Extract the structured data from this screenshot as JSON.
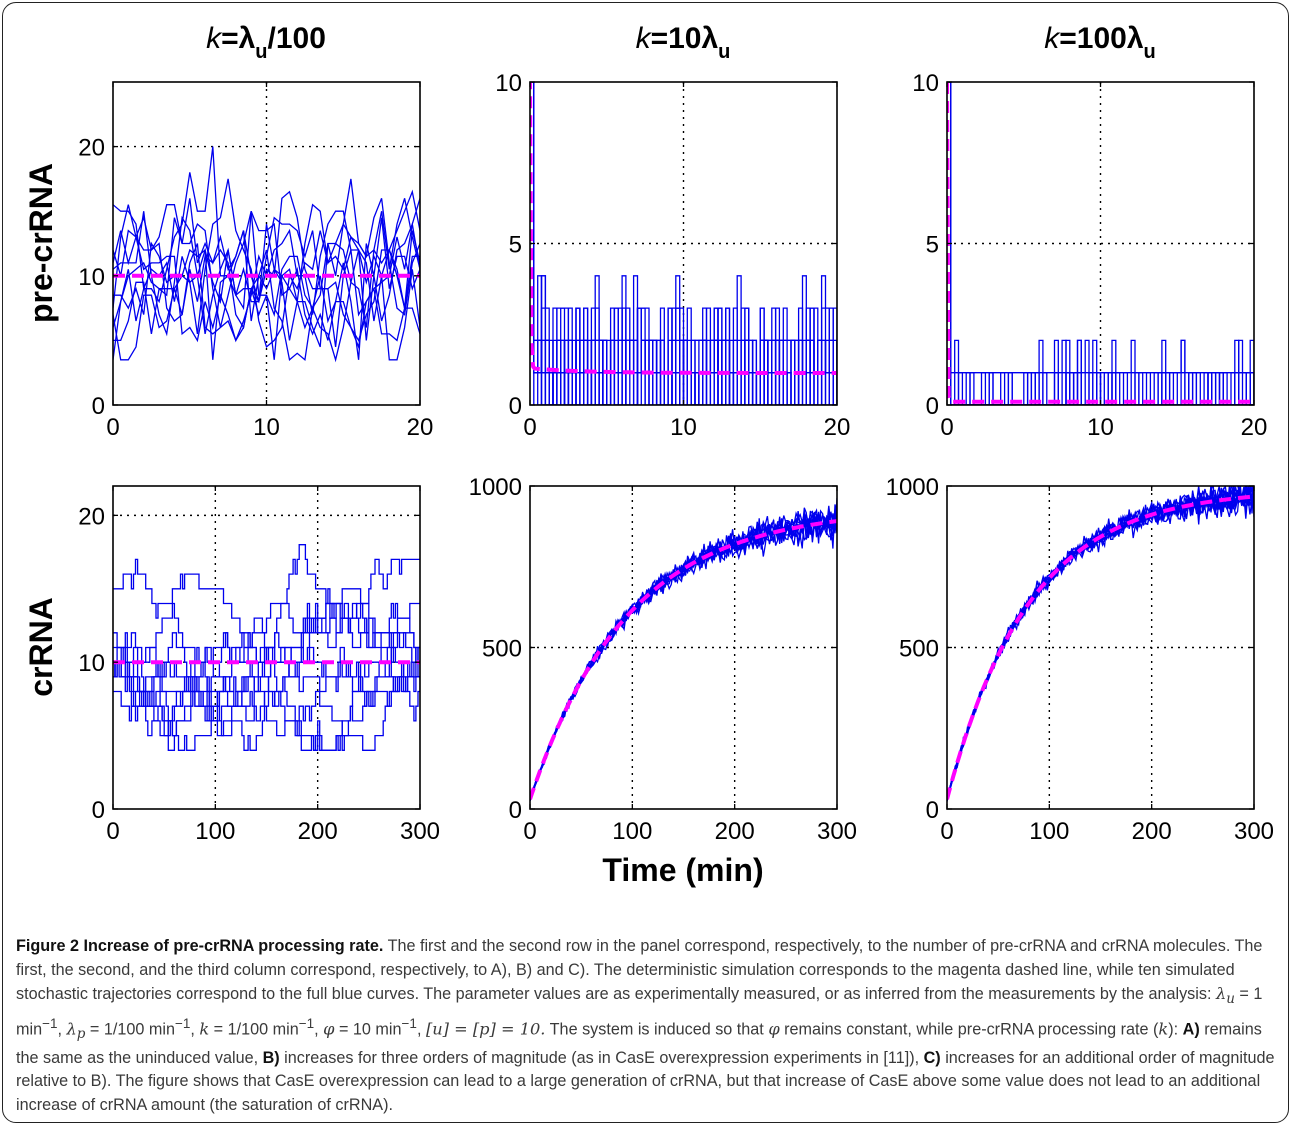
{
  "figure": {
    "col_titles": [
      {
        "pre": "k",
        "mid": "=λ",
        "sub": "u",
        "post": "/100"
      },
      {
        "pre": "k",
        "mid": "=10λ",
        "sub": "u",
        "post": ""
      },
      {
        "pre": "k",
        "mid": "=100λ",
        "sub": "u",
        "post": ""
      }
    ],
    "row_labels": [
      "pre-crRNA",
      "crRNA"
    ],
    "xlabel": "Time (min)"
  },
  "colors": {
    "stochastic": "#0000ee",
    "deterministic": "#ff00ff",
    "axis": "#000000",
    "grid": "#000000"
  },
  "chart_data": [
    {
      "type": "line",
      "panel": "top-left",
      "xlim": [
        0,
        20
      ],
      "ylim": [
        0,
        25
      ],
      "xticks": [
        0,
        10,
        20
      ],
      "yticks": [
        0,
        10,
        20
      ],
      "grid": true,
      "series": [
        {
          "style": "stochastic",
          "x": [
            0,
            20
          ],
          "y": [
            10,
            10
          ]
        },
        {
          "style": "deterministic",
          "x": [
            0,
            20
          ],
          "y": [
            10,
            10
          ]
        }
      ]
    },
    {
      "type": "line",
      "panel": "top-middle",
      "xlim": [
        0,
        20
      ],
      "ylim": [
        0,
        10
      ],
      "xticks": [
        0,
        10,
        20
      ],
      "yticks": [
        0,
        5,
        10
      ],
      "grid": true,
      "series": [
        {
          "style": "stochastic",
          "x": [
            0,
            20
          ],
          "y": [
            1.5,
            1.5
          ]
        },
        {
          "style": "deterministic",
          "x": [
            0,
            0.2,
            0.5,
            1,
            20
          ],
          "y": [
            10,
            2,
            1.2,
            1.1,
            0.99
          ]
        }
      ]
    },
    {
      "type": "line",
      "panel": "top-right",
      "xlim": [
        0,
        20
      ],
      "ylim": [
        0,
        10
      ],
      "xticks": [
        0,
        10,
        20
      ],
      "yticks": [
        0,
        5,
        10
      ],
      "grid": true,
      "series": [
        {
          "style": "stochastic",
          "x": [
            0,
            20
          ],
          "y": [
            0.5,
            0.5
          ]
        },
        {
          "style": "deterministic",
          "x": [
            0,
            0.1,
            0.3,
            20
          ],
          "y": [
            10,
            1,
            0.1,
            0.1
          ]
        }
      ]
    },
    {
      "type": "line",
      "panel": "bottom-left",
      "xlim": [
        0,
        300
      ],
      "ylim": [
        0,
        22
      ],
      "xticks": [
        0,
        100,
        200,
        300
      ],
      "yticks": [
        0,
        10,
        20
      ],
      "grid": true,
      "series": [
        {
          "style": "stochastic",
          "x": [
            0,
            300
          ],
          "y": [
            10,
            10
          ]
        },
        {
          "style": "deterministic",
          "x": [
            0,
            300
          ],
          "y": [
            10,
            10
          ]
        }
      ]
    },
    {
      "type": "line",
      "panel": "bottom-middle",
      "xlim": [
        0,
        300
      ],
      "ylim": [
        0,
        1000
      ],
      "xticks": [
        0,
        100,
        200,
        300
      ],
      "yticks": [
        0,
        500,
        1000
      ],
      "grid": true,
      "series": [
        {
          "style": "stochastic",
          "x": [
            0,
            300
          ],
          "y": [
            30,
            860
          ]
        },
        {
          "style": "deterministic",
          "x": [
            0,
            50,
            100,
            150,
            200,
            250,
            300
          ],
          "y": [
            30,
            350,
            560,
            690,
            780,
            830,
            870
          ]
        }
      ]
    },
    {
      "type": "line",
      "panel": "bottom-right",
      "xlim": [
        0,
        300
      ],
      "ylim": [
        0,
        1000
      ],
      "xticks": [
        0,
        100,
        200,
        300
      ],
      "yticks": [
        0,
        500,
        1000
      ],
      "grid": true,
      "series": [
        {
          "style": "stochastic",
          "x": [
            0,
            300
          ],
          "y": [
            30,
            940
          ]
        },
        {
          "style": "deterministic",
          "x": [
            0,
            50,
            100,
            150,
            200,
            250,
            300
          ],
          "y": [
            30,
            390,
            620,
            770,
            860,
            910,
            940
          ]
        }
      ]
    }
  ],
  "caption": {
    "label": "Figure 2 Increase of pre-crRNA processing rate.",
    "s1": "The first and the second row in the panel correspond, respectively, to the number of pre-crRNA and crRNA molecules. The first, the second, and the third column correspond, respectively, to A), B) and C). The deterministic simulation corresponds to the magenta dashed line, while ten simulated stochastic trajectories correspond to the full blue curves. The parameter values are as experimentally measured, or as inferred from the measurements by the analysis:",
    "p1": "λ",
    "p1_sub": "u",
    "p1_val": " = 1 min",
    "p2": "λ",
    "p2_sub": "p",
    "p2_val": " = 1/100 min",
    "p3": "k",
    "p3_val": " = 1/100 min",
    "p4": "φ",
    "p4_val": " = 10 min",
    "exp": "−1",
    "p5": "[u] = [p] = 10.",
    "s2": "The system is induced so that",
    "phi": "φ",
    "s3": "remains constant, while pre-crRNA processing rate (",
    "k": "k",
    "s4": "):",
    "A_label": "A)",
    "A_text": "remains the same as the uninduced value,",
    "B_label": "B)",
    "B_text": "increases for three orders of magnitude (as in CasE overexpression experiments in [11]),",
    "C_label": "C)",
    "C_text": "increases for an additional order of magnitude relative to B). The figure shows that CasE overexpression can lead to a large generation of crRNA, but that increase of CasE above some value does not lead to an additional increase of crRNA amount (the saturation of crRNA)."
  }
}
